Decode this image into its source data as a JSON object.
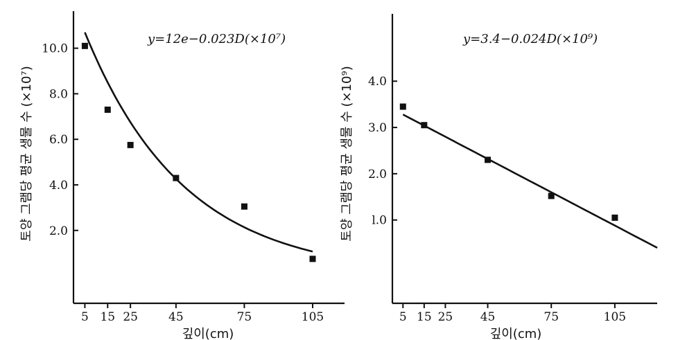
{
  "chart_data": [
    {
      "type": "scatter",
      "title": "",
      "annotation": "y=12e−0.023D(×10⁷)",
      "xlabel": "깊이(cm)",
      "ylabel": "토양 그램당 평균 생물 수 (×10⁷)",
      "x_ticks": [
        5,
        15,
        25,
        45,
        75,
        105
      ],
      "y_ticks": [
        "2.0",
        "4.0",
        "6.0",
        "8.0",
        "10.0"
      ],
      "xlim": [
        0,
        119
      ],
      "ylim": [
        -1.2,
        11.6
      ],
      "points": [
        {
          "x": 5,
          "y": 10.1
        },
        {
          "x": 15,
          "y": 7.3
        },
        {
          "x": 25,
          "y": 5.75
        },
        {
          "x": 45,
          "y": 4.3
        },
        {
          "x": 75,
          "y": 3.05
        },
        {
          "x": 105,
          "y": 0.75
        }
      ],
      "fit": {
        "kind": "exponential",
        "a": 12,
        "b": -0.023,
        "x_from": 5,
        "x_to": 105
      }
    },
    {
      "type": "scatter",
      "title": "",
      "annotation": "y=3.4−0.024D(×10⁹)",
      "xlabel": "깊이(cm)",
      "ylabel": "토양 그램당 평균 생물 수 (×10⁹)",
      "x_ticks": [
        5,
        15,
        25,
        45,
        75,
        105
      ],
      "y_ticks": [
        "l.0",
        "2.0",
        "3.0",
        "4.0"
      ],
      "xlim": [
        0,
        125
      ],
      "ylim": [
        -0.8,
        5.5
      ],
      "points": [
        {
          "x": 5,
          "y": 3.45
        },
        {
          "x": 15,
          "y": 3.05
        },
        {
          "x": 45,
          "y": 2.3
        },
        {
          "x": 75,
          "y": 1.52
        },
        {
          "x": 105,
          "y": 1.05
        }
      ],
      "fit": {
        "kind": "linear",
        "a": 3.4,
        "b": -0.024,
        "x_from": 5,
        "x_to": 125
      }
    }
  ]
}
